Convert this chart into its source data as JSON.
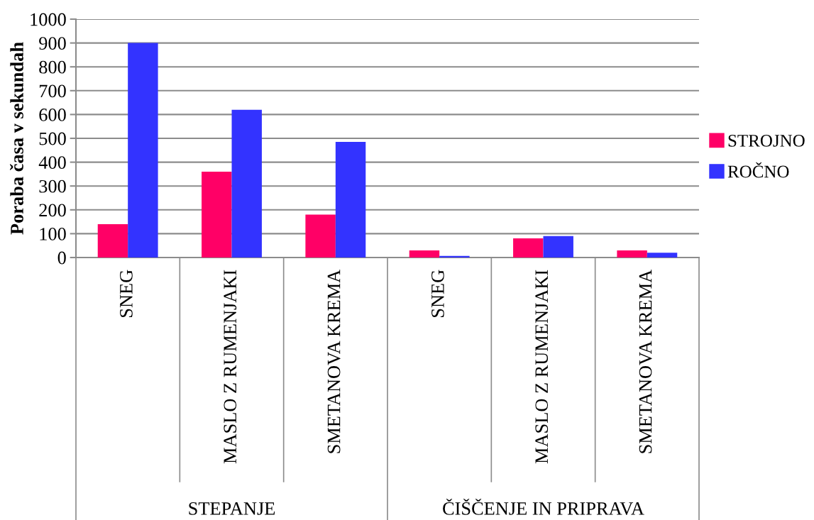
{
  "chart_data": {
    "type": "bar",
    "ylabel": "Poraba časa v sekundah",
    "categories": [
      "SNEG",
      "MASLO Z RUMENJAKI",
      "SMETANOVA KREMA",
      "SNEG",
      "MASLO Z RUMENJAKI",
      "SMETANOVA KREMA"
    ],
    "series": [
      {
        "name": "STROJNO",
        "color": "#ff0066",
        "values": [
          140,
          360,
          180,
          30,
          80,
          30
        ]
      },
      {
        "name": "ROČNO",
        "color": "#3333ff",
        "values": [
          900,
          620,
          485,
          7,
          90,
          20
        ]
      }
    ],
    "annotations": [
      "STEPANJE",
      "ČIŠČENJE IN PRIPRAVA"
    ],
    "ylim": [
      0,
      1000
    ],
    "yticks": [
      0,
      100,
      200,
      300,
      400,
      500,
      600,
      700,
      800,
      900,
      1000
    ],
    "grid": "y",
    "legend": "right"
  }
}
